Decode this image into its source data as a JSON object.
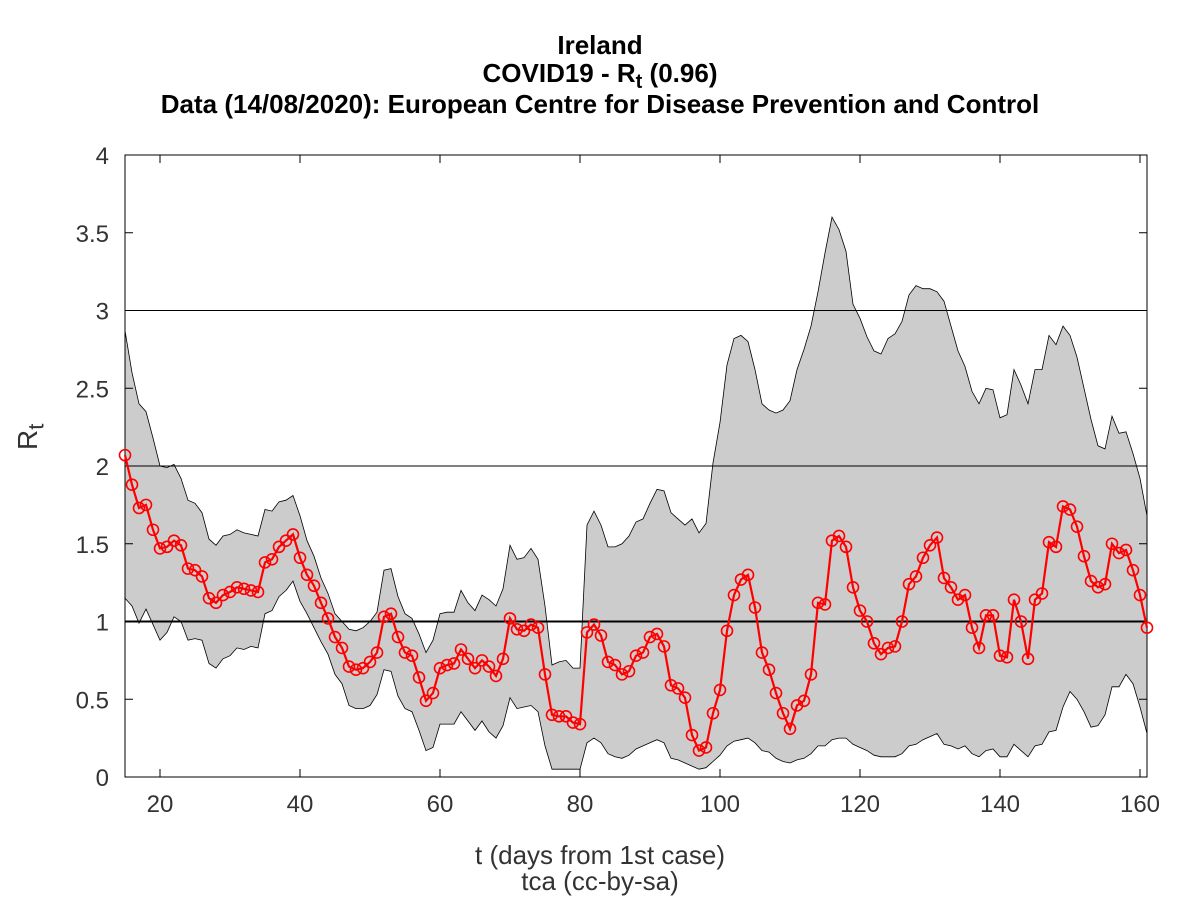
{
  "chart_data": {
    "type": "line",
    "title_line1": "Ireland",
    "title_line2_prefix": "COVID19 - R",
    "title_line2_sub": "t",
    "title_line2_suffix": " (0.96)",
    "title_line3": "Data (14/08/2020): European Centre for Disease Prevention and Control",
    "xlabel": "t (days from 1st case)",
    "caption": "tca (cc-by-sa)",
    "ylabel_main": "R",
    "ylabel_sub": "t",
    "xlim": [
      15,
      161
    ],
    "ylim": [
      0,
      4
    ],
    "xticks": [
      20,
      40,
      60,
      80,
      100,
      120,
      140,
      160
    ],
    "yticks": [
      0,
      0.5,
      1,
      1.5,
      2,
      2.5,
      3,
      3.5,
      4
    ],
    "ytick_labels": [
      "0",
      "0.5",
      "1",
      "1.5",
      "2",
      "2.5",
      "3",
      "3.5",
      "4"
    ],
    "reference_lines": [
      1,
      2,
      3
    ],
    "grid": false,
    "series": [
      {
        "color": "#ff0000",
        "marker": "circle",
        "x": [
          15,
          16,
          17,
          18,
          19,
          20,
          21,
          22,
          23,
          24,
          25,
          26,
          27,
          28,
          29,
          30,
          31,
          32,
          33,
          34,
          35,
          36,
          37,
          38,
          39,
          40,
          41,
          42,
          43,
          44,
          45,
          46,
          47,
          48,
          49,
          50,
          51,
          52,
          53,
          54,
          55,
          56,
          57,
          58,
          59,
          60,
          61,
          62,
          63,
          64,
          65,
          66,
          67,
          68,
          69,
          70,
          71,
          72,
          73,
          74,
          75,
          76,
          77,
          78,
          79,
          80,
          81,
          82,
          83,
          84,
          85,
          86,
          87,
          88,
          89,
          90,
          91,
          92,
          93,
          94,
          95,
          96,
          97,
          98,
          99,
          100,
          101,
          102,
          103,
          104,
          105,
          106,
          107,
          108,
          109,
          110,
          111,
          112,
          113,
          114,
          115,
          116,
          117,
          118,
          119,
          120,
          121,
          122,
          123,
          124,
          125,
          126,
          127,
          128,
          129,
          130,
          131,
          132,
          133,
          134,
          135,
          136,
          137,
          138,
          139,
          140,
          141,
          142,
          143,
          144,
          145,
          146,
          147,
          148,
          149,
          150,
          151,
          152,
          153,
          154,
          155,
          156,
          157,
          158,
          159,
          160,
          161
        ],
        "y": [
          2.07,
          1.88,
          1.73,
          1.75,
          1.59,
          1.47,
          1.48,
          1.52,
          1.49,
          1.34,
          1.33,
          1.29,
          1.15,
          1.12,
          1.17,
          1.19,
          1.22,
          1.21,
          1.2,
          1.19,
          1.38,
          1.4,
          1.48,
          1.52,
          1.56,
          1.41,
          1.3,
          1.23,
          1.12,
          1.02,
          0.9,
          0.83,
          0.71,
          0.69,
          0.7,
          0.74,
          0.8,
          1.03,
          1.05,
          0.9,
          0.8,
          0.78,
          0.64,
          0.49,
          0.54,
          0.7,
          0.72,
          0.73,
          0.82,
          0.76,
          0.7,
          0.75,
          0.71,
          0.65,
          0.76,
          1.02,
          0.95,
          0.94,
          0.98,
          0.96,
          0.66,
          0.4,
          0.39,
          0.39,
          0.35,
          0.34,
          0.93,
          0.98,
          0.91,
          0.74,
          0.72,
          0.66,
          0.68,
          0.78,
          0.8,
          0.9,
          0.92,
          0.84,
          0.59,
          0.57,
          0.51,
          0.27,
          0.17,
          0.19,
          0.41,
          0.56,
          0.94,
          1.17,
          1.27,
          1.3,
          1.09,
          0.8,
          0.69,
          0.54,
          0.41,
          0.31,
          0.46,
          0.49,
          0.66,
          1.12,
          1.11,
          1.52,
          1.55,
          1.48,
          1.22,
          1.07,
          1.0,
          0.86,
          0.79,
          0.83,
          0.84,
          1.0,
          1.24,
          1.29,
          1.41,
          1.49,
          1.54,
          1.28,
          1.22,
          1.14,
          1.17,
          0.96,
          0.83,
          1.04,
          1.04,
          0.78,
          0.77,
          1.14,
          1.0,
          0.76,
          1.14,
          1.18,
          1.51,
          1.48,
          1.74,
          1.72,
          1.61,
          1.42,
          1.26,
          1.22,
          1.24,
          1.5,
          1.44,
          1.46,
          1.33,
          1.17,
          0.96
        ]
      }
    ],
    "confidence_band": {
      "color": "#cccccc",
      "x": [
        15,
        16,
        17,
        18,
        19,
        20,
        21,
        22,
        23,
        24,
        25,
        26,
        27,
        28,
        29,
        30,
        31,
        32,
        33,
        34,
        35,
        36,
        37,
        38,
        39,
        40,
        41,
        42,
        43,
        44,
        45,
        46,
        47,
        48,
        49,
        50,
        51,
        52,
        53,
        54,
        55,
        56,
        57,
        58,
        59,
        60,
        61,
        62,
        63,
        64,
        65,
        66,
        67,
        68,
        69,
        70,
        71,
        72,
        73,
        74,
        75,
        76,
        77,
        78,
        79,
        80,
        81,
        82,
        83,
        84,
        85,
        86,
        87,
        88,
        89,
        90,
        91,
        92,
        93,
        94,
        95,
        96,
        97,
        98,
        99,
        100,
        101,
        102,
        103,
        104,
        105,
        106,
        107,
        108,
        109,
        110,
        111,
        112,
        113,
        114,
        115,
        116,
        117,
        118,
        119,
        120,
        121,
        122,
        123,
        124,
        125,
        126,
        127,
        128,
        129,
        130,
        131,
        132,
        133,
        134,
        135,
        136,
        137,
        138,
        139,
        140,
        141,
        142,
        143,
        144,
        145,
        146,
        147,
        148,
        149,
        150,
        151,
        152,
        153,
        154,
        155,
        156,
        157,
        158,
        159,
        160,
        161
      ],
      "upper": [
        2.87,
        2.6,
        2.4,
        2.35,
        2.18,
        2.0,
        1.99,
        2.01,
        1.92,
        1.78,
        1.76,
        1.7,
        1.53,
        1.49,
        1.55,
        1.56,
        1.59,
        1.57,
        1.56,
        1.55,
        1.72,
        1.71,
        1.77,
        1.78,
        1.81,
        1.68,
        1.52,
        1.42,
        1.28,
        1.18,
        1.05,
        1.0,
        0.95,
        0.94,
        0.96,
        1.0,
        1.06,
        1.33,
        1.34,
        1.16,
        1.05,
        1.02,
        0.92,
        0.8,
        0.88,
        1.05,
        1.06,
        1.06,
        1.2,
        1.12,
        1.07,
        1.17,
        1.14,
        1.1,
        1.21,
        1.49,
        1.4,
        1.41,
        1.47,
        1.4,
        1.1,
        0.72,
        0.74,
        0.75,
        0.7,
        0.7,
        1.62,
        1.71,
        1.62,
        1.48,
        1.48,
        1.5,
        1.55,
        1.64,
        1.66,
        1.76,
        1.85,
        1.84,
        1.7,
        1.66,
        1.62,
        1.66,
        1.57,
        1.63,
        2.02,
        2.28,
        2.65,
        2.82,
        2.84,
        2.8,
        2.62,
        2.4,
        2.36,
        2.34,
        2.36,
        2.42,
        2.62,
        2.75,
        2.9,
        3.12,
        3.37,
        3.6,
        3.52,
        3.38,
        3.04,
        2.95,
        2.83,
        2.74,
        2.72,
        2.82,
        2.85,
        2.93,
        3.1,
        3.16,
        3.14,
        3.14,
        3.12,
        3.06,
        2.9,
        2.74,
        2.64,
        2.48,
        2.4,
        2.5,
        2.49,
        2.31,
        2.33,
        2.62,
        2.52,
        2.4,
        2.62,
        2.62,
        2.84,
        2.78,
        2.9,
        2.84,
        2.7,
        2.5,
        2.3,
        2.13,
        2.11,
        2.32,
        2.21,
        2.22,
        2.08,
        1.92,
        1.68
      ],
      "lower": [
        1.15,
        1.1,
        0.99,
        1.08,
        0.98,
        0.88,
        0.93,
        1.03,
        1.0,
        0.88,
        0.89,
        0.88,
        0.73,
        0.7,
        0.76,
        0.78,
        0.83,
        0.82,
        0.84,
        0.83,
        1.05,
        1.07,
        1.16,
        1.2,
        1.26,
        1.13,
        1.05,
        0.96,
        0.87,
        0.79,
        0.66,
        0.6,
        0.46,
        0.44,
        0.44,
        0.46,
        0.53,
        0.69,
        0.68,
        0.52,
        0.44,
        0.42,
        0.3,
        0.17,
        0.19,
        0.34,
        0.34,
        0.34,
        0.42,
        0.36,
        0.3,
        0.36,
        0.29,
        0.25,
        0.33,
        0.51,
        0.44,
        0.45,
        0.46,
        0.42,
        0.2,
        0.05,
        0.05,
        0.05,
        0.05,
        0.05,
        0.22,
        0.25,
        0.22,
        0.15,
        0.13,
        0.12,
        0.14,
        0.18,
        0.2,
        0.22,
        0.24,
        0.22,
        0.12,
        0.11,
        0.09,
        0.07,
        0.05,
        0.06,
        0.1,
        0.14,
        0.2,
        0.23,
        0.24,
        0.25,
        0.22,
        0.17,
        0.16,
        0.12,
        0.1,
        0.09,
        0.11,
        0.12,
        0.15,
        0.2,
        0.2,
        0.24,
        0.25,
        0.25,
        0.21,
        0.19,
        0.17,
        0.14,
        0.13,
        0.13,
        0.13,
        0.15,
        0.2,
        0.21,
        0.24,
        0.26,
        0.28,
        0.21,
        0.2,
        0.18,
        0.2,
        0.15,
        0.13,
        0.17,
        0.18,
        0.13,
        0.13,
        0.21,
        0.17,
        0.13,
        0.2,
        0.21,
        0.29,
        0.3,
        0.45,
        0.55,
        0.5,
        0.42,
        0.32,
        0.33,
        0.4,
        0.58,
        0.58,
        0.66,
        0.6,
        0.45,
        0.28
      ]
    }
  }
}
